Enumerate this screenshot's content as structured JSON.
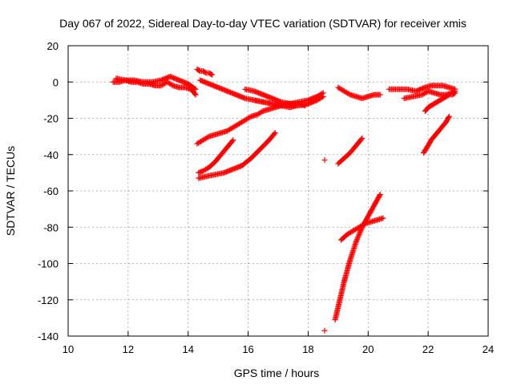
{
  "chart_data": {
    "type": "scatter",
    "title": "Day 067 of 2022, Sidereal Day-to-day VTEC variation (SDTVAR) for receiver xmis",
    "xlabel": "GPS time / hours",
    "ylabel": "SDTVAR / TECUs",
    "xlim": [
      10,
      24
    ],
    "ylim": [
      -140,
      20
    ],
    "xticks": [
      10,
      12,
      14,
      16,
      18,
      20,
      22,
      24
    ],
    "yticks": [
      -140,
      -120,
      -100,
      -80,
      -60,
      -40,
      -20,
      0,
      20
    ],
    "grid": true,
    "marker": "+",
    "color": "#ff0000",
    "series": [
      {
        "name": "arc-1",
        "x": [
          11.5,
          11.7,
          11.9,
          12.1,
          12.3,
          12.5,
          12.7,
          12.9,
          13.1,
          13.3,
          13.5,
          13.7,
          13.9,
          14.1,
          14.25
        ],
        "y": [
          0,
          0,
          1,
          0,
          0,
          -1,
          -1,
          -2,
          -2,
          0,
          -2,
          -3,
          -3,
          -4,
          -7
        ]
      },
      {
        "name": "arc-2",
        "x": [
          11.6,
          11.9,
          12.2,
          12.5,
          12.8,
          13.1,
          13.4,
          13.7,
          14.0,
          14.25
        ],
        "y": [
          2,
          1,
          1,
          0,
          0,
          1,
          3,
          1,
          -1,
          -4
        ]
      },
      {
        "name": "arc-3",
        "x": [
          14.3,
          14.4,
          14.5,
          14.6,
          14.7,
          14.8
        ],
        "y": [
          7,
          6,
          6,
          5,
          5,
          4
        ]
      },
      {
        "name": "arc-4",
        "x": [
          14.4,
          14.7,
          15.0,
          15.3,
          15.6,
          15.9,
          16.2,
          16.5,
          16.8,
          17.1,
          17.4,
          17.7,
          18.0,
          18.3,
          18.5
        ],
        "y": [
          1,
          -1,
          -3,
          -5,
          -7,
          -9,
          -10,
          -11,
          -12,
          -13,
          -13,
          -13,
          -12,
          -10,
          -8
        ]
      },
      {
        "name": "arc-5",
        "x": [
          15.9,
          16.2,
          16.5,
          16.8,
          17.1,
          17.4,
          17.7,
          18.0,
          18.3,
          18.5
        ],
        "y": [
          -4,
          -5,
          -7,
          -9,
          -11,
          -12,
          -11,
          -10,
          -8,
          -6
        ]
      },
      {
        "name": "arc-6",
        "x": [
          16.2,
          16.5,
          16.8,
          17.1,
          17.4,
          17.6
        ],
        "y": [
          -10,
          -11,
          -12,
          -13,
          -14,
          -13
        ]
      },
      {
        "name": "arc-7",
        "x": [
          14.3,
          14.5,
          14.7,
          14.9,
          15.1,
          15.3,
          15.5,
          15.7,
          15.9,
          16.1,
          16.3,
          16.5,
          16.7,
          16.9,
          17.1,
          17.3,
          17.5,
          17.7,
          17.9
        ],
        "y": [
          -34,
          -32,
          -30,
          -29,
          -28,
          -27,
          -25,
          -23,
          -21,
          -19,
          -18,
          -16,
          -15,
          -14,
          -13,
          -12,
          -12,
          -12,
          -13
        ]
      },
      {
        "name": "arc-8",
        "x": [
          14.35,
          14.5,
          14.7,
          14.9,
          15.1,
          15.3,
          15.5
        ],
        "y": [
          -50,
          -49,
          -47,
          -44,
          -40,
          -36,
          -32
        ]
      },
      {
        "name": "arc-9",
        "x": [
          14.35,
          14.6,
          14.9,
          15.2,
          15.5,
          15.8,
          16.1,
          16.4,
          16.7,
          16.9
        ],
        "y": [
          -53,
          -52,
          -51,
          -50,
          -48,
          -46,
          -42,
          -37,
          -32,
          -28
        ]
      },
      {
        "name": "arc-10",
        "x": [
          18.55
        ],
        "y": [
          -43
        ]
      },
      {
        "name": "arc-11",
        "x": [
          18.55
        ],
        "y": [
          -137
        ]
      },
      {
        "name": "arc-12",
        "x": [
          19.0,
          19.2,
          19.4,
          19.6,
          19.8,
          20.0,
          20.2,
          20.4
        ],
        "y": [
          -3,
          -5,
          -7,
          -8,
          -9,
          -8,
          -7,
          -7
        ]
      },
      {
        "name": "arc-13",
        "x": [
          19.0,
          19.2,
          19.4,
          19.6,
          19.8
        ],
        "y": [
          -45,
          -42,
          -39,
          -35,
          -31
        ]
      },
      {
        "name": "arc-14",
        "x": [
          18.9,
          19.0,
          19.1,
          19.2,
          19.3,
          19.4,
          19.5,
          19.6,
          19.7,
          19.8,
          19.9,
          20.0,
          20.1,
          20.2,
          20.3,
          20.4
        ],
        "y": [
          -131,
          -124,
          -117,
          -110,
          -104,
          -98,
          -93,
          -88,
          -84,
          -80,
          -77,
          -74,
          -71,
          -68,
          -65,
          -62
        ]
      },
      {
        "name": "arc-15",
        "x": [
          19.1,
          19.3,
          19.5,
          19.7,
          19.9,
          20.1,
          20.3,
          20.5
        ],
        "y": [
          -87,
          -84,
          -82,
          -80,
          -78,
          -77,
          -76,
          -75
        ]
      },
      {
        "name": "arc-16",
        "x": [
          20.7,
          21.0,
          21.3,
          21.6,
          21.9,
          22.1,
          22.3,
          22.5,
          22.7,
          22.9
        ],
        "y": [
          -4,
          -4,
          -4,
          -5,
          -3,
          -2,
          -2,
          -2,
          -3,
          -4
        ]
      },
      {
        "name": "arc-17",
        "x": [
          21.2,
          21.5,
          21.8,
          22.0,
          22.2,
          22.4,
          22.6,
          22.8,
          22.9
        ],
        "y": [
          -9,
          -8,
          -7,
          -5,
          -6,
          -7,
          -7,
          -6,
          -5
        ]
      },
      {
        "name": "arc-18",
        "x": [
          21.9,
          22.0,
          22.1,
          22.2,
          22.3,
          22.4,
          22.5,
          22.6,
          22.7,
          22.8,
          22.9
        ],
        "y": [
          -16,
          -14,
          -13,
          -12,
          -11,
          -10,
          -9,
          -8,
          -7,
          -7,
          -6
        ]
      },
      {
        "name": "arc-19",
        "x": [
          21.85,
          22.0,
          22.1,
          22.2,
          22.3,
          22.4,
          22.5,
          22.6,
          22.7
        ],
        "y": [
          -39,
          -35,
          -32,
          -30,
          -28,
          -26,
          -24,
          -22,
          -19
        ]
      }
    ]
  }
}
